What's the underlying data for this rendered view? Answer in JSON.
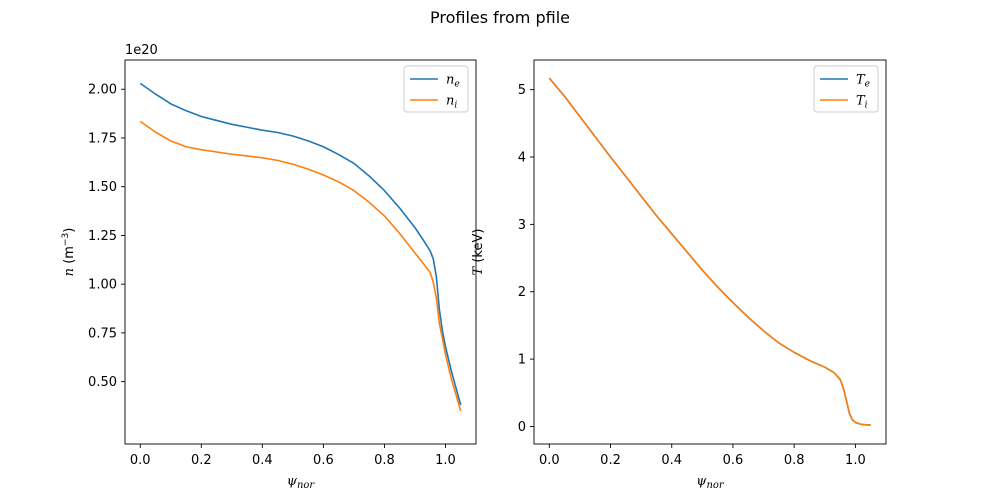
{
  "figure": {
    "title": "Profiles from pfile"
  },
  "chart_data": [
    {
      "type": "line",
      "offset_text": "1e20",
      "xlabel": {
        "sym": "ψ",
        "sub": "nor"
      },
      "ylabel": {
        "sym": "n",
        "unit_pre": " (m",
        "unit_sup": "−3",
        "unit_post": ")"
      },
      "xlim": [
        -0.05,
        1.1
      ],
      "ylim": [
        0.18,
        2.15
      ],
      "xticks": [
        0.0,
        0.2,
        0.4,
        0.6,
        0.8,
        1.0
      ],
      "xtick_labels": [
        "0.0",
        "0.2",
        "0.4",
        "0.6",
        "0.8",
        "1.0"
      ],
      "yticks": [
        0.5,
        0.75,
        1.0,
        1.25,
        1.5,
        1.75,
        2.0
      ],
      "ytick_labels": [
        "0.50",
        "0.75",
        "1.00",
        "1.25",
        "1.50",
        "1.75",
        "2.00"
      ],
      "legend_position": "upper right",
      "series": [
        {
          "name": "n",
          "sub": "e",
          "color": "#1f77b4",
          "x": [
            0,
            0.05,
            0.1,
            0.15,
            0.2,
            0.25,
            0.3,
            0.35,
            0.4,
            0.45,
            0.5,
            0.55,
            0.6,
            0.65,
            0.7,
            0.75,
            0.8,
            0.85,
            0.9,
            0.93,
            0.95,
            0.96,
            0.97,
            0.98,
            0.99,
            1.0,
            1.02,
            1.05
          ],
          "y": [
            2.03,
            1.975,
            1.925,
            1.89,
            1.86,
            1.84,
            1.82,
            1.805,
            1.79,
            1.778,
            1.76,
            1.735,
            1.705,
            1.665,
            1.62,
            1.555,
            1.48,
            1.39,
            1.29,
            1.22,
            1.17,
            1.13,
            1.04,
            0.87,
            0.76,
            0.68,
            0.55,
            0.38
          ]
        },
        {
          "name": "n",
          "sub": "i",
          "color": "#ff7f0e",
          "x": [
            0,
            0.05,
            0.1,
            0.15,
            0.2,
            0.25,
            0.3,
            0.35,
            0.4,
            0.45,
            0.5,
            0.55,
            0.6,
            0.65,
            0.7,
            0.75,
            0.8,
            0.85,
            0.9,
            0.93,
            0.95,
            0.96,
            0.97,
            0.98,
            0.99,
            1.0,
            1.02,
            1.05
          ],
          "y": [
            1.835,
            1.78,
            1.735,
            1.705,
            1.69,
            1.678,
            1.667,
            1.658,
            1.648,
            1.635,
            1.615,
            1.59,
            1.56,
            1.525,
            1.48,
            1.42,
            1.35,
            1.26,
            1.16,
            1.1,
            1.06,
            1.01,
            0.93,
            0.8,
            0.72,
            0.64,
            0.51,
            0.35
          ]
        }
      ]
    },
    {
      "type": "line",
      "xlabel": {
        "sym": "ψ",
        "sub": "nor"
      },
      "ylabel": {
        "sym": "T",
        "unit_pre": " (keV)",
        "unit_sup": "",
        "unit_post": ""
      },
      "xlim": [
        -0.05,
        1.1
      ],
      "ylim": [
        -0.26,
        5.44
      ],
      "xticks": [
        0.0,
        0.2,
        0.4,
        0.6,
        0.8,
        1.0
      ],
      "xtick_labels": [
        "0.0",
        "0.2",
        "0.4",
        "0.6",
        "0.8",
        "1.0"
      ],
      "yticks": [
        0,
        1,
        2,
        3,
        4,
        5
      ],
      "ytick_labels": [
        "0",
        "1",
        "2",
        "3",
        "4",
        "5"
      ],
      "legend_position": "upper right",
      "series": [
        {
          "name": "T",
          "sub": "e",
          "color": "#1f77b4",
          "x": [
            0,
            0.05,
            0.1,
            0.15,
            0.2,
            0.25,
            0.3,
            0.35,
            0.4,
            0.45,
            0.5,
            0.55,
            0.6,
            0.65,
            0.7,
            0.75,
            0.8,
            0.85,
            0.9,
            0.93,
            0.95,
            0.96,
            0.97,
            0.98,
            0.99,
            1.0,
            1.02,
            1.05
          ],
          "y": [
            5.17,
            4.9,
            4.6,
            4.3,
            4.0,
            3.71,
            3.42,
            3.13,
            2.86,
            2.59,
            2.32,
            2.07,
            1.84,
            1.62,
            1.42,
            1.24,
            1.1,
            0.98,
            0.88,
            0.8,
            0.7,
            0.58,
            0.4,
            0.2,
            0.1,
            0.06,
            0.03,
            0.02
          ]
        },
        {
          "name": "T",
          "sub": "i",
          "color": "#ff7f0e",
          "x": [
            0,
            0.05,
            0.1,
            0.15,
            0.2,
            0.25,
            0.3,
            0.35,
            0.4,
            0.45,
            0.5,
            0.55,
            0.6,
            0.65,
            0.7,
            0.75,
            0.8,
            0.85,
            0.9,
            0.93,
            0.95,
            0.96,
            0.97,
            0.98,
            0.99,
            1.0,
            1.02,
            1.05
          ],
          "y": [
            5.17,
            4.9,
            4.6,
            4.3,
            4.0,
            3.71,
            3.42,
            3.13,
            2.86,
            2.59,
            2.32,
            2.07,
            1.84,
            1.62,
            1.42,
            1.24,
            1.1,
            0.98,
            0.88,
            0.8,
            0.7,
            0.58,
            0.4,
            0.2,
            0.1,
            0.06,
            0.03,
            0.02
          ]
        }
      ]
    }
  ]
}
